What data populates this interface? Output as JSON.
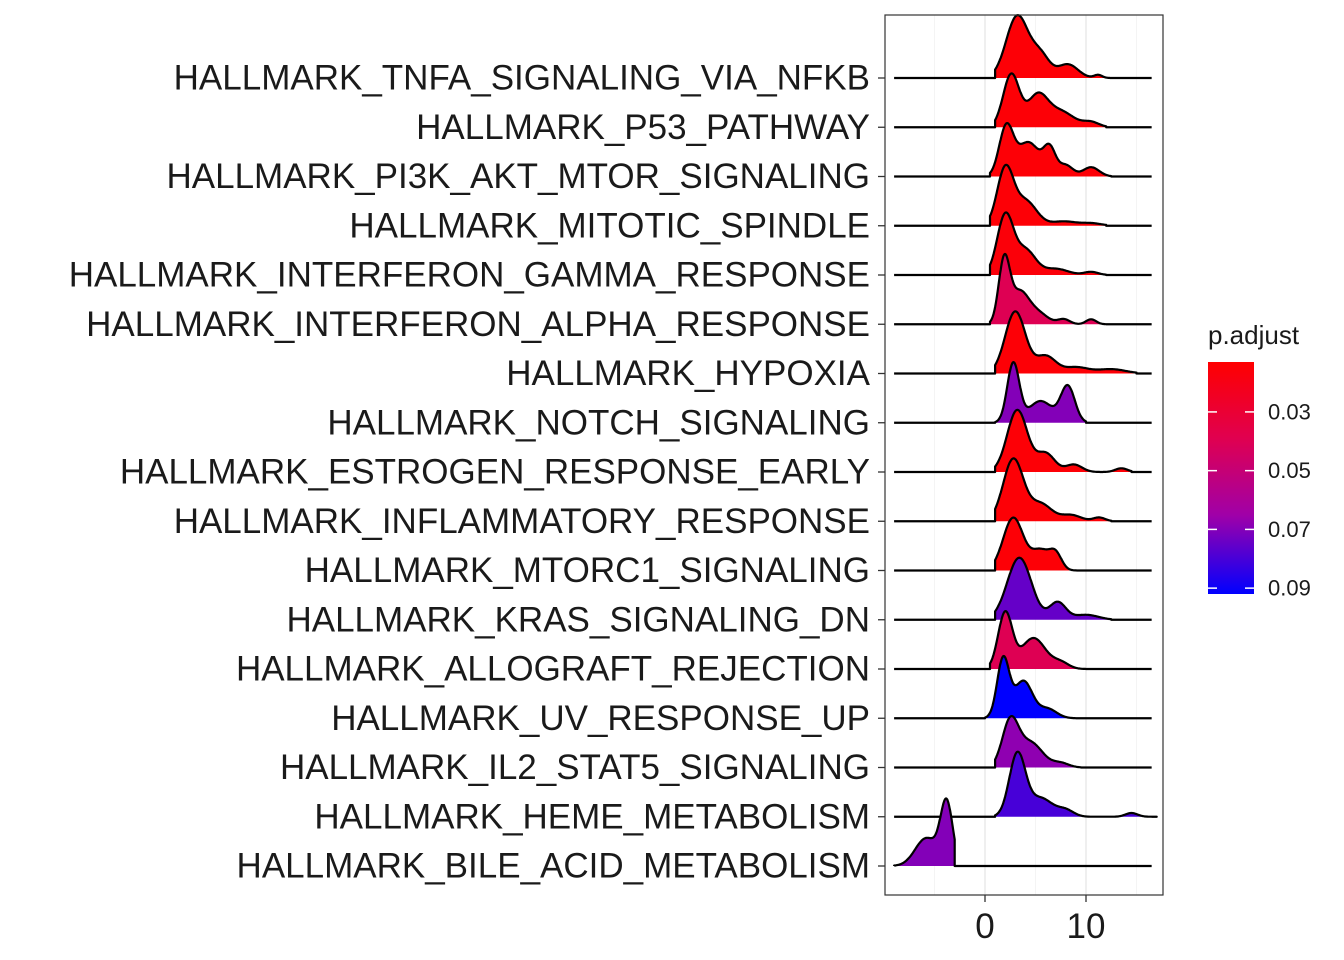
{
  "chart_data": {
    "type": "ridgeline",
    "x_ticks": [
      0,
      10
    ],
    "xlim": [
      -10,
      17.5
    ],
    "grid": true,
    "legend": {
      "title": "p.adjust",
      "position": "right",
      "ticks": [
        "0.03",
        "0.05",
        "0.07",
        "0.09"
      ],
      "tick_values": [
        0.03,
        0.05,
        0.07,
        0.09
      ],
      "range": [
        0.013,
        0.092
      ],
      "low_color": "#ff0000",
      "high_color": "#0000ff"
    },
    "series": [
      {
        "name": "HALLMARK_TNFA_SIGNALING_VIA_NFKB",
        "p_adjust": 0.015,
        "xmin": 1.0,
        "xmax": 12.5,
        "peaks": [
          [
            3.2,
            1.0,
            1.1
          ],
          [
            5.5,
            0.35,
            0.9
          ],
          [
            8.2,
            0.22,
            1.0
          ],
          [
            11.2,
            0.05,
            0.4
          ]
        ]
      },
      {
        "name": "HALLMARK_P53_PATHWAY",
        "p_adjust": 0.015,
        "xmin": 1.0,
        "xmax": 12.0,
        "peaks": [
          [
            2.6,
            0.85,
            0.8
          ],
          [
            5.2,
            0.5,
            1.0
          ],
          [
            7.5,
            0.25,
            1.3
          ],
          [
            10.5,
            0.08,
            0.8
          ]
        ]
      },
      {
        "name": "HALLMARK_PI3K_AKT_MTOR_SIGNALING",
        "p_adjust": 0.015,
        "xmin": 0.5,
        "xmax": 12.5,
        "peaks": [
          [
            2.1,
            0.78,
            0.7
          ],
          [
            4.3,
            0.55,
            1.1
          ],
          [
            6.4,
            0.42,
            0.6
          ],
          [
            8.0,
            0.18,
            0.7
          ],
          [
            10.5,
            0.15,
            0.8
          ]
        ]
      },
      {
        "name": "HALLMARK_MITOTIC_SPINDLE",
        "p_adjust": 0.015,
        "xmin": 0.5,
        "xmax": 12.0,
        "peaks": [
          [
            2.0,
            0.9,
            0.8
          ],
          [
            4.0,
            0.4,
            1.1
          ],
          [
            7.8,
            0.07,
            1.2
          ],
          [
            10.5,
            0.04,
            1.0
          ]
        ]
      },
      {
        "name": "HALLMARK_INTERFERON_GAMMA_RESPONSE",
        "p_adjust": 0.016,
        "xmin": 0.5,
        "xmax": 12.0,
        "peaks": [
          [
            2.0,
            0.95,
            0.8
          ],
          [
            4.0,
            0.4,
            1.0
          ],
          [
            7.0,
            0.1,
            1.2
          ],
          [
            10.5,
            0.05,
            0.7
          ]
        ]
      },
      {
        "name": "HALLMARK_INTERFERON_ALPHA_RESPONSE",
        "p_adjust": 0.04,
        "xmin": 0.5,
        "xmax": 12.0,
        "peaks": [
          [
            1.9,
            1.0,
            0.55
          ],
          [
            3.4,
            0.5,
            0.9
          ],
          [
            5.2,
            0.18,
            1.0
          ],
          [
            7.8,
            0.08,
            0.6
          ],
          [
            10.5,
            0.08,
            0.5
          ]
        ]
      },
      {
        "name": "HALLMARK_HYPOXIA",
        "p_adjust": 0.015,
        "xmin": 1.0,
        "xmax": 15.0,
        "peaks": [
          [
            3.0,
            1.0,
            1.0
          ],
          [
            6.0,
            0.28,
            1.0
          ],
          [
            9.0,
            0.1,
            1.2
          ],
          [
            12.5,
            0.07,
            1.4
          ]
        ]
      },
      {
        "name": "HALLMARK_NOTCH_SIGNALING",
        "p_adjust": 0.07,
        "xmin": 1.0,
        "xmax": 10.0,
        "peaks": [
          [
            2.8,
            0.95,
            0.6
          ],
          [
            5.5,
            0.35,
            1.2
          ],
          [
            8.2,
            0.58,
            0.7
          ]
        ]
      },
      {
        "name": "HALLMARK_ESTROGEN_RESPONSE_EARLY",
        "p_adjust": 0.015,
        "xmin": 1.0,
        "xmax": 14.5,
        "peaks": [
          [
            3.2,
            1.0,
            1.0
          ],
          [
            6.0,
            0.3,
            0.9
          ],
          [
            8.8,
            0.12,
            0.8
          ],
          [
            13.5,
            0.06,
            0.6
          ]
        ]
      },
      {
        "name": "HALLMARK_INFLAMMATORY_RESPONSE",
        "p_adjust": 0.015,
        "xmin": 1.0,
        "xmax": 12.5,
        "peaks": [
          [
            2.8,
            1.0,
            1.0
          ],
          [
            5.5,
            0.28,
            1.1
          ],
          [
            8.5,
            0.1,
            1.0
          ],
          [
            11.3,
            0.06,
            0.6
          ]
        ]
      },
      {
        "name": "HALLMARK_MTORC1_SIGNALING",
        "p_adjust": 0.015,
        "xmin": 1.0,
        "xmax": 10.0,
        "peaks": [
          [
            2.8,
            0.85,
            1.0
          ],
          [
            5.5,
            0.32,
            0.9
          ],
          [
            7.0,
            0.25,
            0.6
          ]
        ]
      },
      {
        "name": "HALLMARK_KRAS_SIGNALING_DN",
        "p_adjust": 0.075,
        "xmin": 1.0,
        "xmax": 12.5,
        "peaks": [
          [
            3.4,
            1.0,
            1.2
          ],
          [
            7.2,
            0.28,
            0.8
          ],
          [
            10.0,
            0.08,
            1.2
          ]
        ]
      },
      {
        "name": "HALLMARK_ALLOGRAFT_REJECTION",
        "p_adjust": 0.04,
        "xmin": 0.5,
        "xmax": 10.0,
        "peaks": [
          [
            2.0,
            0.9,
            0.7
          ],
          [
            4.8,
            0.5,
            1.2
          ],
          [
            7.5,
            0.1,
            0.8
          ]
        ]
      },
      {
        "name": "HALLMARK_UV_RESPONSE_UP",
        "p_adjust": 0.092,
        "xmin": 0.0,
        "xmax": 9.0,
        "peaks": [
          [
            1.8,
            0.95,
            0.6
          ],
          [
            3.8,
            0.6,
            0.9
          ],
          [
            6.2,
            0.15,
            0.9
          ]
        ]
      },
      {
        "name": "HALLMARK_IL2_STAT5_SIGNALING",
        "p_adjust": 0.068,
        "xmin": 1.0,
        "xmax": 9.5,
        "peaks": [
          [
            2.5,
            0.72,
            0.8
          ],
          [
            4.5,
            0.4,
            1.2
          ],
          [
            7.5,
            0.07,
            0.8
          ]
        ]
      },
      {
        "name": "HALLMARK_HEME_METABOLISM",
        "p_adjust": 0.08,
        "xmin": 1.0,
        "xmax": 17.0,
        "peaks": [
          [
            3.2,
            1.0,
            0.8
          ],
          [
            5.5,
            0.3,
            1.2
          ],
          [
            8.0,
            0.1,
            0.8
          ],
          [
            14.5,
            0.06,
            0.6
          ]
        ]
      },
      {
        "name": "HALLMARK_BILE_ACID_METABOLISM",
        "p_adjust": 0.07,
        "xmin": -9.0,
        "xmax": -3.0,
        "peaks": [
          [
            -3.8,
            1.0,
            0.6
          ],
          [
            -5.8,
            0.45,
            1.1
          ]
        ]
      }
    ]
  }
}
